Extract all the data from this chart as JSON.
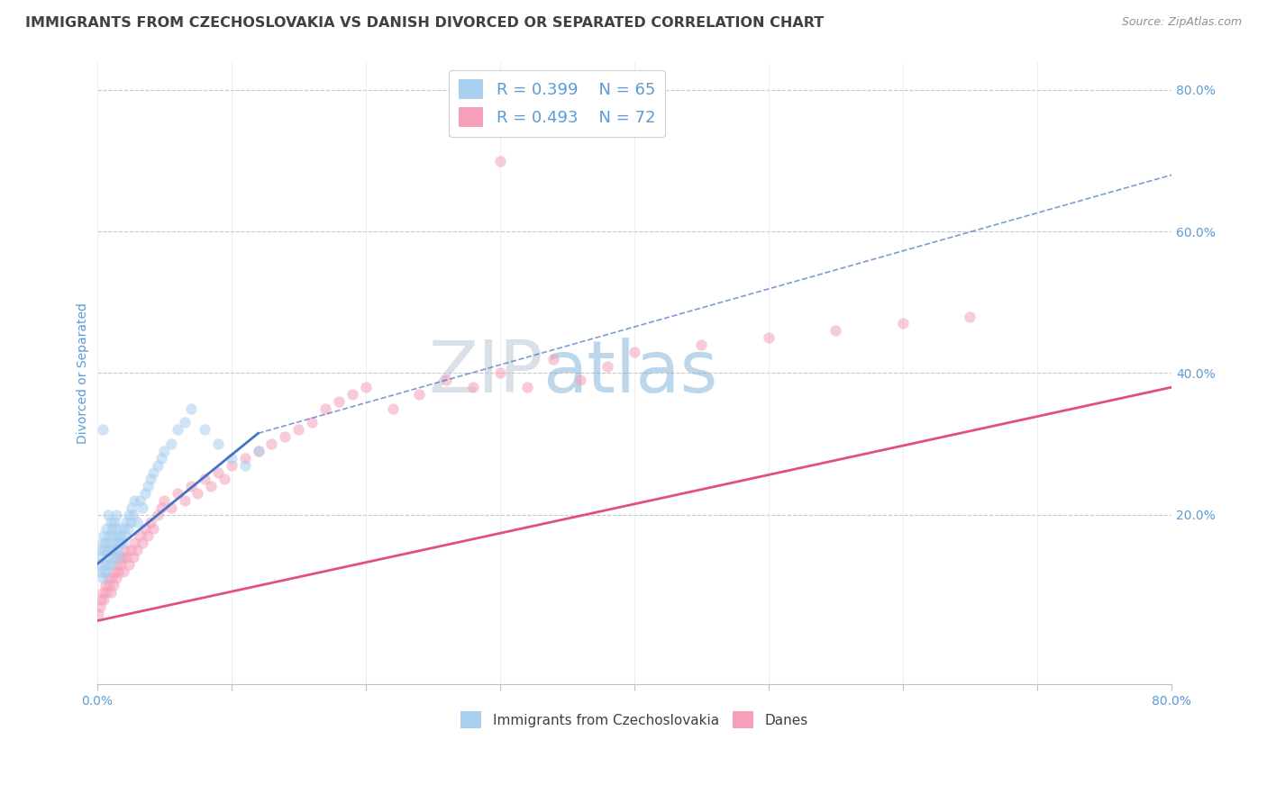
{
  "title": "IMMIGRANTS FROM CZECHOSLOVAKIA VS DANISH DIVORCED OR SEPARATED CORRELATION CHART",
  "source_text": "Source: ZipAtlas.com",
  "ylabel": "Divorced or Separated",
  "watermark": "ZIPatlas",
  "xmin": 0.0,
  "xmax": 0.8,
  "ymin": -0.04,
  "ymax": 0.84,
  "x_ticks": [
    0.0,
    0.1,
    0.2,
    0.3,
    0.4,
    0.5,
    0.6,
    0.7,
    0.8
  ],
  "x_tick_labels": [
    "0.0%",
    "",
    "",
    "",
    "",
    "",
    "",
    "",
    "80.0%"
  ],
  "y_ticks": [
    0.0,
    0.2,
    0.4,
    0.6,
    0.8
  ],
  "y_tick_labels": [
    "",
    "20.0%",
    "40.0%",
    "60.0%",
    "80.0%"
  ],
  "legend_entries": [
    {
      "label": "R = 0.399    N = 65",
      "color": "#a8cef0"
    },
    {
      "label": "R = 0.493    N = 72",
      "color": "#f5a0b8"
    }
  ],
  "blue_scatter_x": [
    0.001,
    0.002,
    0.003,
    0.003,
    0.004,
    0.004,
    0.005,
    0.005,
    0.005,
    0.006,
    0.006,
    0.007,
    0.007,
    0.008,
    0.008,
    0.008,
    0.009,
    0.009,
    0.01,
    0.01,
    0.01,
    0.011,
    0.011,
    0.012,
    0.012,
    0.013,
    0.013,
    0.014,
    0.014,
    0.015,
    0.015,
    0.016,
    0.016,
    0.017,
    0.018,
    0.019,
    0.02,
    0.021,
    0.022,
    0.023,
    0.024,
    0.025,
    0.026,
    0.027,
    0.028,
    0.03,
    0.032,
    0.034,
    0.036,
    0.038,
    0.04,
    0.042,
    0.045,
    0.048,
    0.05,
    0.055,
    0.06,
    0.065,
    0.07,
    0.08,
    0.09,
    0.1,
    0.11,
    0.12,
    0.004
  ],
  "blue_scatter_y": [
    0.13,
    0.12,
    0.14,
    0.15,
    0.11,
    0.16,
    0.12,
    0.15,
    0.17,
    0.13,
    0.16,
    0.12,
    0.18,
    0.13,
    0.15,
    0.2,
    0.14,
    0.17,
    0.13,
    0.16,
    0.19,
    0.15,
    0.18,
    0.14,
    0.17,
    0.15,
    0.19,
    0.16,
    0.2,
    0.15,
    0.18,
    0.14,
    0.17,
    0.16,
    0.17,
    0.16,
    0.18,
    0.17,
    0.19,
    0.18,
    0.2,
    0.19,
    0.21,
    0.2,
    0.22,
    0.19,
    0.22,
    0.21,
    0.23,
    0.24,
    0.25,
    0.26,
    0.27,
    0.28,
    0.29,
    0.3,
    0.32,
    0.33,
    0.35,
    0.32,
    0.3,
    0.28,
    0.27,
    0.29,
    0.32
  ],
  "pink_scatter_x": [
    0.001,
    0.002,
    0.003,
    0.004,
    0.005,
    0.006,
    0.007,
    0.008,
    0.009,
    0.01,
    0.011,
    0.012,
    0.013,
    0.014,
    0.015,
    0.016,
    0.017,
    0.018,
    0.019,
    0.02,
    0.021,
    0.022,
    0.024,
    0.025,
    0.027,
    0.028,
    0.03,
    0.032,
    0.034,
    0.036,
    0.038,
    0.04,
    0.042,
    0.045,
    0.048,
    0.05,
    0.055,
    0.06,
    0.065,
    0.07,
    0.075,
    0.08,
    0.085,
    0.09,
    0.095,
    0.1,
    0.11,
    0.12,
    0.13,
    0.14,
    0.15,
    0.16,
    0.17,
    0.18,
    0.19,
    0.2,
    0.22,
    0.24,
    0.26,
    0.28,
    0.3,
    0.32,
    0.34,
    0.36,
    0.38,
    0.4,
    0.45,
    0.5,
    0.55,
    0.6,
    0.65,
    0.3
  ],
  "pink_scatter_y": [
    0.06,
    0.07,
    0.08,
    0.09,
    0.08,
    0.1,
    0.09,
    0.11,
    0.1,
    0.09,
    0.11,
    0.1,
    0.12,
    0.11,
    0.13,
    0.12,
    0.14,
    0.13,
    0.14,
    0.12,
    0.15,
    0.14,
    0.13,
    0.15,
    0.14,
    0.16,
    0.15,
    0.17,
    0.16,
    0.18,
    0.17,
    0.19,
    0.18,
    0.2,
    0.21,
    0.22,
    0.21,
    0.23,
    0.22,
    0.24,
    0.23,
    0.25,
    0.24,
    0.26,
    0.25,
    0.27,
    0.28,
    0.29,
    0.3,
    0.31,
    0.32,
    0.33,
    0.35,
    0.36,
    0.37,
    0.38,
    0.35,
    0.37,
    0.39,
    0.38,
    0.4,
    0.38,
    0.42,
    0.39,
    0.41,
    0.43,
    0.44,
    0.45,
    0.46,
    0.47,
    0.48,
    0.7
  ],
  "blue_solid_line_x": [
    0.0,
    0.12
  ],
  "blue_solid_line_y": [
    0.13,
    0.315
  ],
  "blue_dash_line_x": [
    0.12,
    0.8
  ],
  "blue_dash_line_y": [
    0.315,
    0.68
  ],
  "pink_line_x": [
    0.0,
    0.8
  ],
  "pink_line_y": [
    0.05,
    0.38
  ],
  "scatter_size": 80,
  "scatter_alpha": 0.55,
  "blue_color": "#a8cef0",
  "pink_color": "#f5a0b8",
  "blue_line_color": "#4472c4",
  "pink_line_color": "#e05080",
  "grid_color": "#c8c8c8",
  "watermark_color": "#c8d8e8",
  "title_color": "#404040",
  "axis_label_color": "#5b9bd5",
  "tick_label_color": "#5b9bd5"
}
